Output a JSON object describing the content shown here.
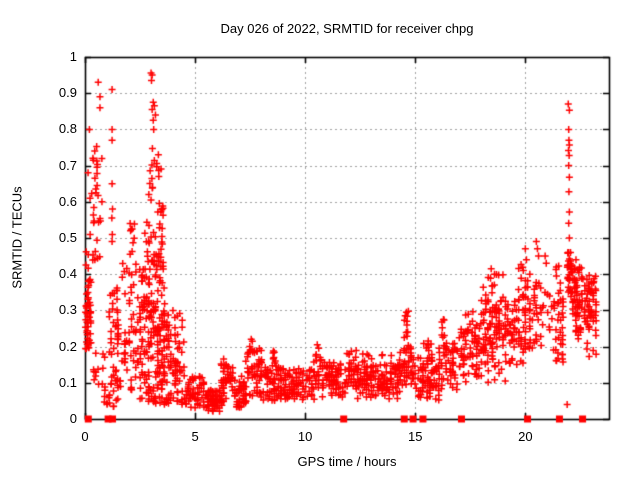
{
  "title": "Day 026 of 2022, SRMTID for receiver chpg",
  "xlabel": "GPS time / hours",
  "ylabel": "SRMTID / TECUs",
  "chart_data": {
    "type": "scatter",
    "title": "Day 026 of 2022, SRMTID for receiver chpg",
    "xlabel": "GPS time / hours",
    "ylabel": "SRMTID / TECUs",
    "xlim": [
      0,
      23.8
    ],
    "ylim": [
      0,
      1
    ],
    "xticks": [
      {
        "v": 0,
        "label": "0"
      },
      {
        "v": 5,
        "label": "5"
      },
      {
        "v": 10,
        "label": "10"
      },
      {
        "v": 15,
        "label": "15"
      },
      {
        "v": 20,
        "label": "20"
      }
    ],
    "yticks": [
      {
        "v": 0,
        "label": "0"
      },
      {
        "v": 0.1,
        "label": "0.1"
      },
      {
        "v": 0.2,
        "label": "0.2"
      },
      {
        "v": 0.3,
        "label": "0.3"
      },
      {
        "v": 0.4,
        "label": "0.4"
      },
      {
        "v": 0.5,
        "label": "0.5"
      },
      {
        "v": 0.6,
        "label": "0.6"
      },
      {
        "v": 0.7,
        "label": "0.7"
      },
      {
        "v": 0.8,
        "label": "0.8"
      },
      {
        "v": 0.9,
        "label": "0.9"
      },
      {
        "v": 1,
        "label": "1"
      }
    ],
    "grid": "dashed",
    "grid_color": "#a0a0a0",
    "axis_color": "#000000",
    "marker_color": "#ff0000",
    "series": [
      {
        "name": "srmtid-plus-markers",
        "marker": "plus",
        "color": "#ff0000",
        "clusters": [
          [
            0.02,
            0.3,
            0.19,
            0.34,
            40
          ],
          [
            0.02,
            0.3,
            0.34,
            0.43,
            10
          ],
          [
            0.05,
            0.65,
            0.43,
            0.52,
            10
          ],
          [
            0.3,
            0.7,
            0.52,
            0.66,
            10
          ],
          [
            0.45,
            0.8,
            0.66,
            0.76,
            8
          ],
          [
            0.3,
            0.9,
            0.09,
            0.19,
            12
          ],
          [
            0.8,
            1.15,
            0.01,
            0.09,
            8
          ],
          [
            1.1,
            1.55,
            0.2,
            0.3,
            18
          ],
          [
            1.15,
            1.5,
            0.3,
            0.37,
            10
          ],
          [
            1.1,
            1.6,
            0.03,
            0.2,
            25
          ],
          [
            1.6,
            2.6,
            0.08,
            0.28,
            45
          ],
          [
            1.7,
            2.5,
            0.28,
            0.43,
            18
          ],
          [
            2.0,
            2.25,
            0.43,
            0.55,
            6
          ],
          [
            2.5,
            3.7,
            0.04,
            0.18,
            60
          ],
          [
            2.5,
            3.8,
            0.18,
            0.3,
            70
          ],
          [
            2.5,
            3.6,
            0.3,
            0.4,
            40
          ],
          [
            2.55,
            3.6,
            0.4,
            0.47,
            25
          ],
          [
            2.6,
            3.55,
            0.47,
            0.55,
            15
          ],
          [
            3.25,
            3.55,
            0.55,
            0.6,
            8
          ],
          [
            2.95,
            3.45,
            0.63,
            0.75,
            14
          ],
          [
            3.6,
            4.6,
            0.04,
            0.16,
            50
          ],
          [
            3.7,
            4.5,
            0.16,
            0.26,
            20
          ],
          [
            4.0,
            4.4,
            0.26,
            0.3,
            5
          ],
          [
            4.6,
            5.6,
            0.03,
            0.12,
            55
          ],
          [
            5.5,
            6.3,
            0.02,
            0.08,
            60
          ],
          [
            6.2,
            6.7,
            0.05,
            0.17,
            35
          ],
          [
            6.7,
            7.3,
            0.03,
            0.12,
            45
          ],
          [
            7.3,
            8.0,
            0.06,
            0.2,
            55
          ],
          [
            8.0,
            9.1,
            0.05,
            0.15,
            70
          ],
          [
            8.5,
            8.7,
            0.15,
            0.19,
            8
          ],
          [
            9.1,
            10.4,
            0.05,
            0.14,
            75
          ],
          [
            10.4,
            10.8,
            0.08,
            0.2,
            25
          ],
          [
            10.8,
            11.9,
            0.06,
            0.16,
            65
          ],
          [
            11.9,
            12.3,
            0.09,
            0.19,
            30
          ],
          [
            12.3,
            14.3,
            0.08,
            0.15,
            110
          ],
          [
            12.3,
            14.3,
            0.05,
            0.08,
            20
          ],
          [
            12.5,
            14.2,
            0.15,
            0.18,
            10
          ],
          [
            14.3,
            15.05,
            0.09,
            0.2,
            45
          ],
          [
            14.5,
            14.75,
            0.2,
            0.3,
            10
          ],
          [
            15.05,
            16.1,
            0.05,
            0.18,
            75
          ],
          [
            15.3,
            15.7,
            0.18,
            0.24,
            8
          ],
          [
            16.1,
            17.0,
            0.08,
            0.22,
            55
          ],
          [
            16.2,
            16.35,
            0.22,
            0.28,
            6
          ],
          [
            17.0,
            18.0,
            0.1,
            0.25,
            60
          ],
          [
            17.2,
            17.9,
            0.25,
            0.3,
            8
          ],
          [
            18.0,
            19.1,
            0.17,
            0.33,
            80
          ],
          [
            18.1,
            19.0,
            0.33,
            0.4,
            12
          ],
          [
            18.0,
            19.1,
            0.1,
            0.17,
            15
          ],
          [
            19.1,
            20.3,
            0.15,
            0.33,
            75
          ],
          [
            19.6,
            20.2,
            0.33,
            0.44,
            18
          ],
          [
            20.3,
            20.8,
            0.2,
            0.38,
            25
          ],
          [
            20.8,
            21.3,
            0.22,
            0.35,
            12
          ],
          [
            21.3,
            21.75,
            0.15,
            0.33,
            30
          ],
          [
            21.4,
            21.7,
            0.33,
            0.44,
            8
          ],
          [
            21.9,
            22.1,
            0.33,
            0.46,
            30
          ],
          [
            22.15,
            22.55,
            0.28,
            0.42,
            45
          ],
          [
            22.2,
            22.5,
            0.22,
            0.28,
            10
          ],
          [
            22.6,
            23.25,
            0.25,
            0.4,
            55
          ],
          [
            22.7,
            23.2,
            0.17,
            0.25,
            8
          ]
        ],
        "points": [
          [
            0.6,
            0.93
          ],
          [
            0.68,
            0.89
          ],
          [
            0.68,
            0.86
          ],
          [
            0.2,
            0.8
          ],
          [
            0.36,
            0.72
          ],
          [
            0.38,
            0.715
          ],
          [
            0.14,
            0.68
          ],
          [
            0.55,
            0.645
          ],
          [
            0.5,
            0.625
          ],
          [
            0.23,
            0.61
          ],
          [
            0.77,
            0.6
          ],
          [
            1.23,
            0.91
          ],
          [
            1.23,
            0.8
          ],
          [
            1.23,
            0.77
          ],
          [
            1.23,
            0.65
          ],
          [
            1.25,
            0.58
          ],
          [
            1.22,
            0.555
          ],
          [
            1.24,
            0.51
          ],
          [
            1.23,
            0.49
          ],
          [
            2.05,
            0.54
          ],
          [
            2.07,
            0.52
          ],
          [
            2.05,
            0.455
          ],
          [
            3.0,
            0.956
          ],
          [
            3.05,
            0.95
          ],
          [
            3.02,
            0.935
          ],
          [
            3.1,
            0.875
          ],
          [
            3.15,
            0.865
          ],
          [
            3.05,
            0.855
          ],
          [
            3.2,
            0.84
          ],
          [
            3.1,
            0.825
          ],
          [
            3.12,
            0.8
          ],
          [
            2.9,
            0.62
          ],
          [
            3.0,
            0.605
          ],
          [
            7.55,
            0.22
          ],
          [
            7.6,
            0.215
          ],
          [
            10.55,
            0.205
          ],
          [
            14.6,
            0.295
          ],
          [
            14.62,
            0.27
          ],
          [
            16.28,
            0.275
          ],
          [
            18.45,
            0.415
          ],
          [
            18.6,
            0.4
          ],
          [
            20.0,
            0.47
          ],
          [
            20.05,
            0.44
          ],
          [
            20.5,
            0.49
          ],
          [
            20.55,
            0.47
          ],
          [
            20.6,
            0.45
          ],
          [
            20.9,
            0.45
          ],
          [
            20.95,
            0.43
          ],
          [
            21.9,
            0.04
          ],
          [
            21.95,
            0.87
          ],
          [
            22.0,
            0.853
          ],
          [
            21.97,
            0.8
          ],
          [
            21.98,
            0.77
          ],
          [
            22.0,
            0.757
          ],
          [
            21.96,
            0.742
          ],
          [
            21.99,
            0.728
          ],
          [
            21.97,
            0.7
          ],
          [
            22.0,
            0.668
          ],
          [
            21.98,
            0.628
          ],
          [
            22.0,
            0.572
          ],
          [
            21.97,
            0.541
          ],
          [
            22.0,
            0.5
          ],
          [
            21.95,
            0.46
          ],
          [
            22.3,
            0.44
          ]
        ]
      },
      {
        "name": "baseline-flag-squares",
        "marker": "filled-square",
        "color": "#ff0000",
        "points": [
          [
            0.15,
            0
          ],
          [
            1.05,
            0
          ],
          [
            1.25,
            0
          ],
          [
            11.75,
            0
          ],
          [
            14.5,
            0
          ],
          [
            14.9,
            0
          ],
          [
            15.35,
            0
          ],
          [
            17.1,
            0
          ],
          [
            20.1,
            0
          ],
          [
            21.55,
            0
          ],
          [
            22.6,
            0
          ]
        ]
      }
    ]
  }
}
